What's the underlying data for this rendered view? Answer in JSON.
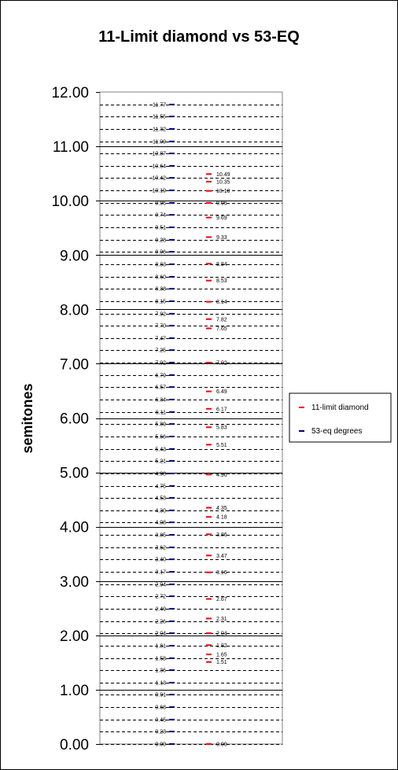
{
  "chart_data": {
    "type": "scatter",
    "title": "11-Limit diamond vs 53-EQ",
    "xlabel": "",
    "ylabel": "semitones",
    "ylim": [
      0,
      12
    ],
    "y_ticks": [
      "0.00",
      "1.00",
      "2.00",
      "3.00",
      "4.00",
      "5.00",
      "6.00",
      "7.00",
      "8.00",
      "9.00",
      "10.00",
      "11.00",
      "12.00"
    ],
    "grid": "dashed lines at each 53-eq degree",
    "legend_placement": "right",
    "series": [
      {
        "name": "11-limit diamond",
        "color": "#ff0000",
        "values": [
          0.0,
          1.51,
          1.65,
          1.82,
          2.04,
          2.31,
          2.67,
          3.16,
          3.47,
          3.86,
          4.18,
          4.35,
          4.96,
          5.51,
          5.83,
          6.17,
          6.49,
          7.02,
          7.65,
          7.82,
          8.14,
          8.53,
          8.84,
          9.33,
          9.69,
          9.96,
          10.18,
          10.35,
          10.49
        ],
        "labels": [
          "0.00",
          "1.51",
          "1.65",
          "1.82",
          "2.04",
          "2.31",
          "2.67",
          "3.16",
          "3.47",
          "3.86",
          "4.18",
          "4.35",
          "4.96",
          "5.51",
          "5.83",
          "6.17",
          "6.49",
          "7.02",
          "7.65",
          "7.82",
          "8.14",
          "8.53",
          "8.84",
          "9.33",
          "9.69",
          "9.96",
          "10.18",
          "10.35",
          "10.49"
        ]
      },
      {
        "name": "53-eq degrees",
        "color": "#000080",
        "values": [
          0.0,
          0.23,
          0.45,
          0.68,
          0.91,
          1.13,
          1.36,
          1.58,
          1.81,
          2.04,
          2.26,
          2.49,
          2.72,
          2.94,
          3.17,
          3.4,
          3.62,
          3.85,
          4.08,
          4.3,
          4.53,
          4.75,
          4.98,
          5.21,
          5.43,
          5.66,
          5.89,
          6.11,
          6.34,
          6.57,
          6.79,
          7.02,
          7.25,
          7.47,
          7.7,
          7.92,
          8.15,
          8.38,
          8.6,
          8.83,
          9.06,
          9.28,
          9.51,
          9.74,
          9.96,
          10.19,
          10.42,
          10.64,
          10.87,
          11.09,
          11.32,
          11.55,
          11.77
        ],
        "labels": [
          "0.00",
          "0.23",
          "0.45",
          "0.68",
          "0.91",
          "1.13",
          "1.36",
          "1.58",
          "1.81",
          "2.04",
          "2.26",
          "2.49",
          "2.72",
          "2.94",
          "3.17",
          "3.40",
          "3.62",
          "3.85",
          "4.08",
          "4.30",
          "4.53",
          "4.75",
          "4.98",
          "5.21",
          "5.43",
          "5.66",
          "5.89",
          "6.11",
          "6.34",
          "6.57",
          "6.79",
          "7.02",
          "7.25",
          "7.47",
          "7.70",
          "7.92",
          "8.15",
          "8.38",
          "8.60",
          "8.83",
          "9.06",
          "9.28",
          "9.51",
          "9.74",
          "9.96",
          "10.19",
          "10.42",
          "10.64",
          "10.87",
          "11.09",
          "11.32",
          "11.55",
          "11.77"
        ]
      }
    ]
  }
}
